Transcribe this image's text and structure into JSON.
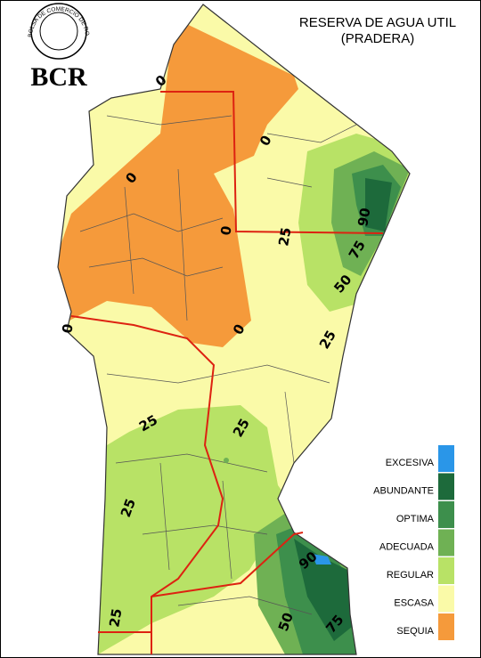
{
  "logo": {
    "ring_text": "BOLSA DE COMERCIO DE ROSARIO",
    "text": "BCR"
  },
  "title": "RESERVA DE AGUA UTIL",
  "subtitle": "(PRADERA)",
  "legend": [
    {
      "label": "EXCESIVA",
      "color": "#2a96e8"
    },
    {
      "label": "ABUNDANTE",
      "color": "#1d6a3b"
    },
    {
      "label": "OPTIMA",
      "color": "#3d8f4c"
    },
    {
      "label": "ADECUADA",
      "color": "#6fb154"
    },
    {
      "label": "REGULAR",
      "color": "#b8e266"
    },
    {
      "label": "ESCASA",
      "color": "#fafaa8"
    },
    {
      "label": "SEQUIA",
      "color": "#f59a3b"
    }
  ],
  "contour_labels": [
    "0",
    "0",
    "0",
    "0",
    "0",
    "0",
    "25",
    "90",
    "75",
    "50",
    "25",
    "25",
    "25",
    "25",
    "25",
    "90",
    "50",
    "75"
  ]
}
